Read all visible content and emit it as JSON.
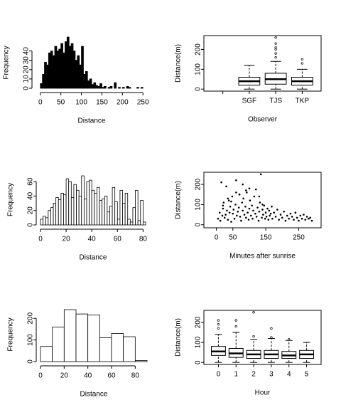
{
  "chart_data": [
    {
      "type": "histogram",
      "xlabel": "Distance",
      "ylabel": "Frequency",
      "bins": [
        0,
        5,
        10,
        15,
        20,
        25,
        30,
        35,
        40,
        45,
        50,
        55,
        60,
        65,
        70,
        75,
        80,
        85,
        90,
        95,
        100,
        105,
        110,
        115,
        120,
        125,
        130,
        135,
        140,
        145,
        150,
        155,
        160,
        165,
        170,
        175,
        180,
        185,
        190,
        195,
        200,
        205,
        210,
        215,
        220,
        225,
        230,
        235,
        240,
        245,
        250
      ],
      "values": [
        5,
        15,
        28,
        25,
        38,
        40,
        35,
        45,
        40,
        42,
        48,
        38,
        50,
        55,
        45,
        48,
        40,
        30,
        35,
        25,
        45,
        15,
        18,
        8,
        10,
        4,
        6,
        3,
        2,
        5,
        1,
        2,
        0,
        1,
        2,
        0,
        6,
        0,
        1,
        0,
        1,
        0,
        2,
        1,
        0,
        0,
        0,
        1,
        0,
        1
      ],
      "color": "#000000",
      "xlim": [
        -10,
        260
      ],
      "xticks": [
        0,
        50,
        100,
        150,
        200,
        250
      ],
      "ylim": [
        0,
        55
      ],
      "yticks": [
        0,
        10,
        20,
        30,
        40
      ]
    },
    {
      "type": "boxplot",
      "xlabel": "Observer",
      "ylabel": "Distance(m)",
      "categories": [
        null,
        "SGF",
        "TJS",
        "TKP"
      ],
      "boxes": [
        null,
        {
          "min": 0,
          "q1": 20,
          "median": 40,
          "q3": 60,
          "max": 120,
          "outliers": []
        },
        {
          "min": 0,
          "q1": 25,
          "median": 50,
          "q3": 80,
          "max": 140,
          "outliers": [
            160,
            180,
            200,
            210,
            230,
            260
          ]
        },
        {
          "min": 0,
          "q1": 20,
          "median": 40,
          "q3": 60,
          "max": 100,
          "outliers": [
            130,
            150
          ]
        }
      ],
      "ylim": [
        -10,
        270
      ],
      "yticks": [
        0,
        100,
        200
      ]
    },
    {
      "type": "histogram",
      "xlabel": "Distance",
      "ylabel": "Frequency",
      "bins": [
        0,
        2,
        4,
        6,
        8,
        10,
        12,
        14,
        16,
        18,
        20,
        22,
        24,
        26,
        28,
        30,
        32,
        34,
        36,
        38,
        40,
        42,
        44,
        46,
        48,
        50,
        52,
        54,
        56,
        58,
        60,
        62,
        64,
        66,
        68,
        70,
        72,
        74,
        76,
        78,
        80,
        82
      ],
      "values": [
        8,
        12,
        10,
        20,
        24,
        30,
        38,
        35,
        44,
        42,
        64,
        60,
        38,
        56,
        48,
        40,
        68,
        36,
        60,
        62,
        48,
        44,
        52,
        34,
        36,
        40,
        18,
        26,
        52,
        32,
        8,
        48,
        30,
        44,
        8,
        4,
        24,
        48,
        6,
        34,
        4
      ],
      "color": "#ffffff",
      "xlim": [
        0,
        82
      ],
      "xticks": [
        0,
        20,
        40,
        60,
        80
      ],
      "ylim": [
        0,
        70
      ],
      "yticks": [
        0,
        20,
        40,
        60
      ]
    },
    {
      "type": "scatter",
      "xlabel": "Minutes after sunrise",
      "ylabel": "Distance(m)",
      "x": [
        5,
        10,
        12,
        15,
        18,
        20,
        22,
        25,
        28,
        30,
        32,
        35,
        38,
        40,
        42,
        45,
        48,
        50,
        52,
        55,
        58,
        60,
        62,
        65,
        68,
        70,
        72,
        75,
        78,
        80,
        82,
        85,
        88,
        90,
        92,
        95,
        98,
        100,
        102,
        105,
        108,
        110,
        112,
        115,
        118,
        120,
        122,
        125,
        128,
        130,
        132,
        135,
        138,
        140,
        142,
        145,
        148,
        150,
        152,
        155,
        158,
        160,
        162,
        165,
        168,
        170,
        175,
        180,
        185,
        190,
        195,
        200,
        205,
        210,
        215,
        220,
        225,
        230,
        235,
        240,
        245,
        250,
        255,
        260,
        265,
        270,
        275,
        280,
        285,
        290,
        20,
        35,
        60,
        80,
        100,
        130,
        140,
        90,
        70,
        45
      ],
      "y": [
        30,
        60,
        20,
        210,
        45,
        80,
        110,
        35,
        50,
        190,
        70,
        25,
        120,
        60,
        90,
        15,
        140,
        55,
        75,
        30,
        100,
        220,
        45,
        65,
        85,
        150,
        40,
        20,
        110,
        70,
        130,
        50,
        90,
        35,
        160,
        60,
        25,
        80,
        120,
        45,
        95,
        30,
        70,
        140,
        55,
        175,
        40,
        85,
        20,
        65,
        110,
        250,
        35,
        75,
        50,
        95,
        30,
        60,
        40,
        80,
        25,
        70,
        45,
        55,
        90,
        30,
        60,
        40,
        75,
        25,
        50,
        35,
        65,
        20,
        45,
        30,
        55,
        40,
        25,
        60,
        35,
        20,
        45,
        30,
        50,
        25,
        40,
        30,
        35,
        20,
        95,
        130,
        160,
        200,
        180,
        140,
        100,
        170,
        150,
        115
      ],
      "color": "#000000",
      "xlim": [
        -38,
        318
      ],
      "xticks": [
        0,
        50,
        150,
        250
      ],
      "ylim": [
        -15,
        260
      ],
      "yticks": [
        0,
        100,
        200
      ]
    },
    {
      "type": "histogram",
      "xlabel": "Distance",
      "ylabel": "Frequency",
      "bins": [
        0,
        10,
        20,
        30,
        40,
        50,
        60,
        70,
        80,
        90
      ],
      "values": [
        70,
        160,
        240,
        220,
        215,
        110,
        130,
        115,
        5
      ],
      "color": "#ffffff",
      "xlim": [
        0,
        90
      ],
      "xticks": [
        0,
        20,
        40,
        60,
        80
      ],
      "ylim": [
        0,
        250
      ],
      "yticks": [
        0,
        100,
        200
      ]
    },
    {
      "type": "boxplot",
      "xlabel": "Hour",
      "ylabel": "Distance(m)",
      "categories": [
        "0",
        "1",
        "2",
        "3",
        "4",
        "5"
      ],
      "boxes": [
        {
          "min": 0,
          "q1": 35,
          "median": 55,
          "q3": 80,
          "max": 140,
          "outliers": [
            170,
            190,
            210
          ]
        },
        {
          "min": 0,
          "q1": 25,
          "median": 45,
          "q3": 70,
          "max": 150,
          "outliers": [
            180,
            210
          ]
        },
        {
          "min": 0,
          "q1": 20,
          "median": 40,
          "q3": 60,
          "max": 115,
          "outliers": [
            130,
            250
          ]
        },
        {
          "min": 0,
          "q1": 20,
          "median": 40,
          "q3": 60,
          "max": 120,
          "outliers": [
            125,
            170
          ]
        },
        {
          "min": 0,
          "q1": 20,
          "median": 35,
          "q3": 55,
          "max": 110,
          "outliers": [
            115
          ]
        },
        {
          "min": 0,
          "q1": 20,
          "median": 40,
          "q3": 60,
          "max": 100,
          "outliers": []
        }
      ],
      "ylim": [
        -10,
        260
      ],
      "yticks": [
        0,
        100,
        200
      ]
    }
  ]
}
